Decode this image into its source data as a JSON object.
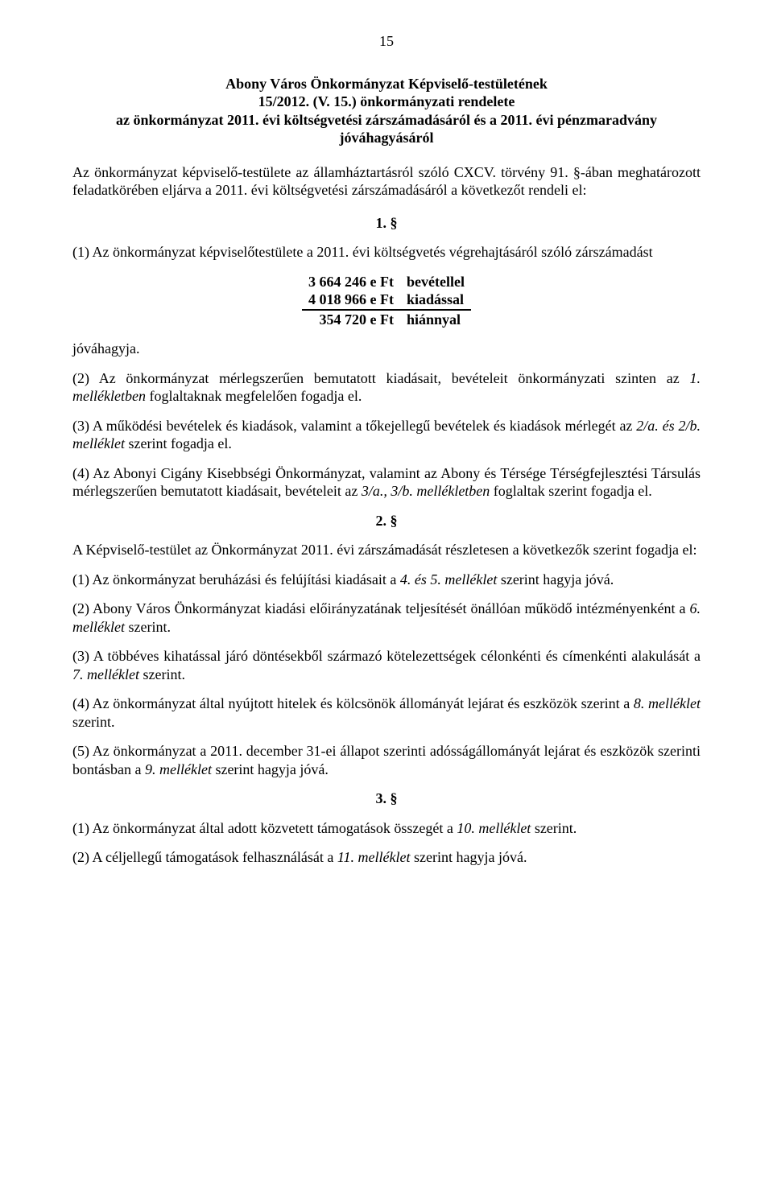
{
  "page_number": "15",
  "title": {
    "line1": "Abony Város Önkormányzat Képviselő-testületének",
    "line2": "15/2012. (V. 15.) önkormányzati rendelete",
    "line3": "az önkormányzat 2011. évi költségvetési zárszámadásáról és a 2011. évi pénzmaradvány jóváhagyásáról"
  },
  "preamble": "Az önkormányzat képviselő-testülete az államháztartásról szóló CXCV. törvény 91. §-ában meghatározott feladatkörében eljárva a 2011. évi költségvetési zárszámadásáról a következőt rendeli el:",
  "s1": {
    "num": "1. §",
    "p1_a": "(1) Az önkormányzat képviselőtestülete a 2011. évi költségvetés végrehajtásáról szóló zárszámadást",
    "budget": {
      "rows": [
        {
          "amount": "3 664 246 e Ft",
          "label": "bevétellel"
        },
        {
          "amount": "4 018 966 e Ft",
          "label": "kiadással"
        },
        {
          "amount": "354 720 e Ft",
          "label": "hiánnyal"
        }
      ]
    },
    "approve": "jóváhagyja.",
    "p2_a": "(2) Az önkormányzat mérlegszerűen bemutatott kiadásait, bevételeit önkormányzati szinten az ",
    "p2_i": "1. mellékletben",
    "p2_b": " foglaltaknak megfelelően fogadja el.",
    "p3_a": "(3) A működési bevételek és kiadások, valamint a tőkejellegű bevételek és kiadások mérlegét az ",
    "p3_i": "2/a. és 2/b. melléklet",
    "p3_b": " szerint fogadja el.",
    "p4_a": "(4) Az Abonyi Cigány Kisebbségi Önkormányzat, valamint az Abony és Térsége Térségfejlesztési Társulás mérlegszerűen bemutatott kiadásait, bevételeit az ",
    "p4_i": "3/a., 3/b. mellékletben",
    "p4_b": " foglaltak szerint fogadja el."
  },
  "s2": {
    "num": "2. §",
    "intro": "A Képviselő-testület az Önkormányzat 2011. évi zárszámadását részletesen a következők szerint fogadja el:",
    "p1_a": "(1) Az önkormányzat beruházási és felújítási kiadásait a ",
    "p1_i": "4. és 5. melléklet",
    "p1_b": " szerint hagyja jóvá.",
    "p2_a": "(2) Abony Város Önkormányzat kiadási előirányzatának teljesítését önállóan működő intézményenként a ",
    "p2_i": "6. melléklet",
    "p2_b": " szerint.",
    "p3_a": "(3) A többéves kihatással járó döntésekből származó kötelezettségek célonkénti és címenkénti alakulását a ",
    "p3_i": "7. melléklet",
    "p3_b": " szerint.",
    "p4_a": "(4) Az önkormányzat által nyújtott hitelek és kölcsönök állományát lejárat és eszközök szerint a ",
    "p4_i": "8. melléklet",
    "p4_b": " szerint.",
    "p5_a": "(5) Az önkormányzat a 2011. december 31-ei állapot szerinti adósságállományát lejárat és eszközök szerinti bontásban a ",
    "p5_i": "9. melléklet",
    "p5_b": " szerint hagyja jóvá."
  },
  "s3": {
    "num": "3. §",
    "p1_a": "(1) Az önkormányzat által adott közvetett támogatások összegét a ",
    "p1_i": "10. melléklet",
    "p1_b": " szerint.",
    "p2_a": "(2) A céljellegű támogatások felhasználását a ",
    "p2_i": "11. melléklet",
    "p2_b": " szerint hagyja jóvá."
  },
  "style": {
    "font_family": "Times New Roman",
    "font_size_pt": 13.5,
    "text_color": "#000000",
    "background_color": "#ffffff",
    "bold_sections": true,
    "italic_refs": true
  }
}
